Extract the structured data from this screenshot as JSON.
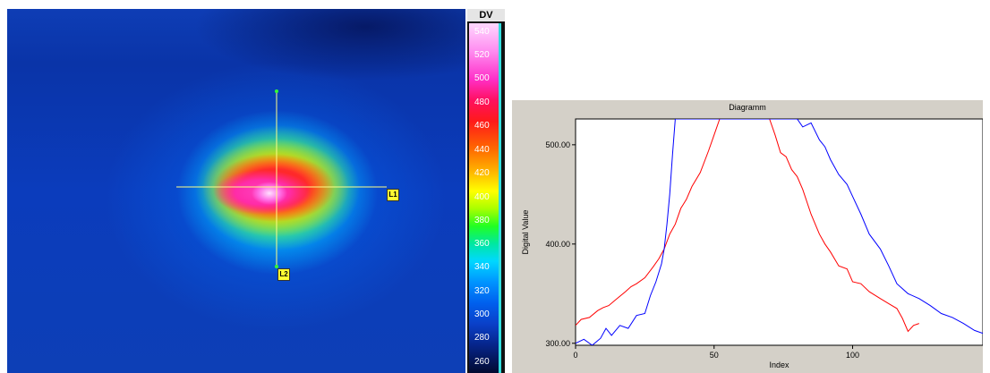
{
  "thermal_image": {
    "scale_title": "DV",
    "scale_ticks": [
      "540",
      "520",
      "500",
      "480",
      "460",
      "440",
      "420",
      "400",
      "380",
      "360",
      "340",
      "320",
      "300",
      "280",
      "260"
    ],
    "line_markers": [
      {
        "id": "L1",
        "label": "L1"
      },
      {
        "id": "L2",
        "label": "L2"
      }
    ]
  },
  "chart_data": {
    "type": "line",
    "title": "Diagramm",
    "xlabel": "Index",
    "ylabel": "Digital Value",
    "xlim": [
      0,
      147
    ],
    "ylim": [
      298,
      526
    ],
    "x_ticks": [
      0,
      50,
      100
    ],
    "y_ticks": [
      300.0,
      400.0,
      500.0
    ],
    "y_tick_labels": [
      "300.00",
      "400.00",
      "500.00"
    ],
    "grid": false,
    "series": [
      {
        "color": "#ff0000",
        "x": [
          0,
          2,
          5,
          8,
          10,
          12,
          15,
          18,
          20,
          22,
          25,
          28,
          30,
          32,
          34,
          36,
          38,
          40,
          42,
          45,
          48,
          50,
          52,
          54,
          56,
          58,
          60,
          62,
          64,
          66,
          68,
          70,
          72,
          74,
          76,
          78,
          80,
          82,
          85,
          88,
          90,
          92,
          95,
          98,
          100,
          103,
          106,
          110,
          113,
          116,
          118,
          120,
          122,
          124
        ],
        "y": [
          318,
          324,
          326,
          333,
          336,
          338,
          345,
          352,
          357,
          360,
          366,
          377,
          385,
          395,
          410,
          420,
          436,
          445,
          458,
          472,
          494,
          510,
          526,
          526,
          526,
          526,
          526,
          526,
          526,
          526,
          526,
          526,
          510,
          492,
          488,
          475,
          468,
          455,
          430,
          410,
          400,
          392,
          378,
          375,
          362,
          360,
          352,
          345,
          340,
          335,
          325,
          312,
          318,
          320
        ]
      },
      {
        "color": "#0000ff",
        "x": [
          0,
          3,
          6,
          9,
          11,
          13,
          16,
          19,
          22,
          25,
          27,
          29,
          31,
          32,
          33,
          34,
          35,
          36,
          37,
          38,
          40,
          45,
          50,
          55,
          60,
          65,
          70,
          75,
          80,
          82,
          85,
          88,
          90,
          92,
          95,
          98,
          100,
          103,
          106,
          110,
          113,
          116,
          120,
          124,
          128,
          132,
          136,
          140,
          144,
          147
        ],
        "y": [
          300,
          304,
          298,
          305,
          315,
          308,
          318,
          315,
          328,
          330,
          348,
          362,
          380,
          395,
          420,
          450,
          490,
          526,
          526,
          526,
          526,
          526,
          526,
          526,
          526,
          526,
          526,
          526,
          526,
          518,
          522,
          505,
          498,
          485,
          470,
          460,
          448,
          430,
          410,
          395,
          378,
          360,
          350,
          345,
          338,
          330,
          326,
          320,
          313,
          310
        ]
      }
    ]
  }
}
